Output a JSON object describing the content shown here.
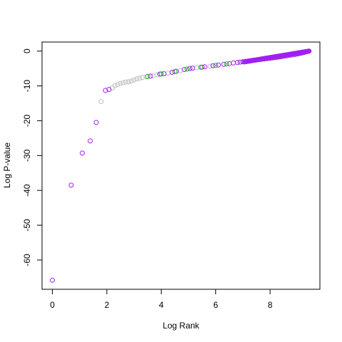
{
  "chart_data": {
    "type": "scatter",
    "title": "",
    "xlabel": "Log Rank",
    "ylabel": "Log P-value",
    "xlim": [
      -0.38,
      9.83
    ],
    "ylim": [
      -68.4,
      2.6
    ],
    "xticks": [
      0,
      2,
      4,
      6,
      8
    ],
    "yticks": [
      0,
      -10,
      -20,
      -30,
      -40,
      -50,
      -60
    ],
    "xtick_labels": [
      "0",
      "2",
      "4",
      "6",
      "8"
    ],
    "ytick_labels": [
      "0",
      "-10",
      "-20",
      "-30",
      "-40",
      "-50",
      "-60"
    ],
    "grid": false,
    "legend": "none",
    "marker": "open-circle",
    "colors": {
      "purple": "#a020f0",
      "grey": "#bebebe",
      "green": "#00cd00"
    },
    "series": [
      {
        "color_key": "purple",
        "points": [
          [
            0.0,
            -65.8
          ],
          [
            0.69,
            -38.5
          ],
          [
            1.1,
            -29.3
          ],
          [
            1.39,
            -25.8
          ],
          [
            1.61,
            -20.5
          ],
          [
            1.95,
            -11.3
          ],
          [
            2.08,
            -11.0
          ],
          [
            3.6,
            -7.2
          ],
          [
            3.95,
            -6.6
          ],
          [
            4.1,
            -6.5
          ],
          [
            4.4,
            -6.1
          ],
          [
            4.55,
            -5.8
          ],
          [
            4.85,
            -5.3
          ],
          [
            5.05,
            -5.0
          ],
          [
            5.15,
            -4.9
          ],
          [
            5.5,
            -4.6
          ],
          [
            5.6,
            -4.5
          ],
          [
            5.9,
            -4.2
          ],
          [
            6.1,
            -4.0
          ],
          [
            6.3,
            -3.8
          ],
          [
            6.5,
            -3.6
          ],
          [
            6.65,
            -3.4
          ],
          [
            6.8,
            -3.25
          ],
          [
            6.9,
            -3.15
          ],
          [
            7.0,
            -3.05
          ],
          [
            7.1,
            -2.95
          ],
          [
            7.2,
            -2.85
          ],
          [
            7.3,
            -2.75
          ],
          [
            7.4,
            -2.65
          ],
          [
            7.5,
            -2.55
          ],
          [
            7.6,
            -2.45
          ],
          [
            7.7,
            -2.35
          ],
          [
            7.8,
            -2.25
          ],
          [
            7.9,
            -2.15
          ],
          [
            8.0,
            -2.05
          ],
          [
            8.1,
            -1.95
          ],
          [
            8.2,
            -1.85
          ],
          [
            8.3,
            -1.75
          ],
          [
            8.4,
            -1.62
          ],
          [
            8.5,
            -1.5
          ],
          [
            8.6,
            -1.38
          ],
          [
            8.7,
            -1.25
          ],
          [
            8.8,
            -1.12
          ],
          [
            8.9,
            -0.98
          ],
          [
            8.98,
            -0.86
          ],
          [
            9.05,
            -0.74
          ],
          [
            9.12,
            -0.62
          ],
          [
            9.18,
            -0.5
          ],
          [
            9.24,
            -0.38
          ],
          [
            9.3,
            -0.26
          ],
          [
            9.35,
            -0.15
          ],
          [
            9.4,
            -0.05
          ],
          [
            9.43,
            0.0
          ]
        ]
      },
      {
        "color_key": "grey",
        "points": [
          [
            1.79,
            -14.5
          ],
          [
            2.2,
            -10.6
          ],
          [
            2.3,
            -9.9
          ],
          [
            2.4,
            -9.6
          ],
          [
            2.5,
            -9.3
          ],
          [
            2.6,
            -9.1
          ],
          [
            2.7,
            -8.9
          ],
          [
            2.8,
            -8.8
          ],
          [
            2.9,
            -8.6
          ],
          [
            3.0,
            -8.3
          ],
          [
            3.1,
            -8.0
          ],
          [
            3.2,
            -7.8
          ],
          [
            3.3,
            -7.6
          ],
          [
            3.45,
            -7.4
          ],
          [
            3.7,
            -7.1
          ],
          [
            3.85,
            -6.8
          ],
          [
            4.25,
            -6.3
          ],
          [
            4.7,
            -5.6
          ],
          [
            5.3,
            -4.8
          ],
          [
            5.8,
            -4.35
          ]
        ]
      },
      {
        "color_key": "green",
        "points": [
          [
            3.5,
            -7.3
          ],
          [
            4.0,
            -6.55
          ],
          [
            4.5,
            -5.9
          ],
          [
            4.95,
            -5.15
          ],
          [
            5.45,
            -4.65
          ],
          [
            6.0,
            -4.1
          ],
          [
            6.4,
            -3.7
          ]
        ]
      }
    ]
  }
}
